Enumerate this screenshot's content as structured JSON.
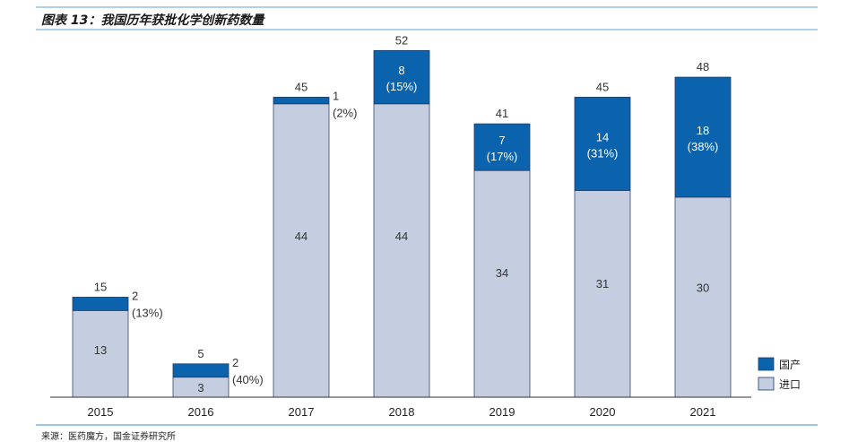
{
  "header": {
    "title": "图表 13：我国历年获批化学创新药数量"
  },
  "footer": {
    "source": "来源：医药魔方，国金证券研究所"
  },
  "colors": {
    "domestic": "#0A63AC",
    "imported": "#C5CEE0",
    "rule": "#5DA6D6",
    "axis": "#333333"
  },
  "chart_data": {
    "type": "bar",
    "stacked": true,
    "categories": [
      "2015",
      "2016",
      "2017",
      "2018",
      "2019",
      "2020",
      "2021"
    ],
    "series": [
      {
        "name": "进口",
        "values": [
          13,
          3,
          44,
          44,
          34,
          31,
          30
        ]
      },
      {
        "name": "国产",
        "values": [
          2,
          2,
          1,
          8,
          7,
          14,
          18
        ]
      }
    ],
    "totals": [
      15,
      5,
      45,
      52,
      41,
      45,
      48
    ],
    "domestic_share_labels": [
      "(13%)",
      "(40%)",
      "(2%)",
      "(15%)",
      "(17%)",
      "(31%)",
      "(38%)"
    ],
    "ylim": [
      0,
      55
    ],
    "legend_position": "bottom-right",
    "grid": false
  }
}
